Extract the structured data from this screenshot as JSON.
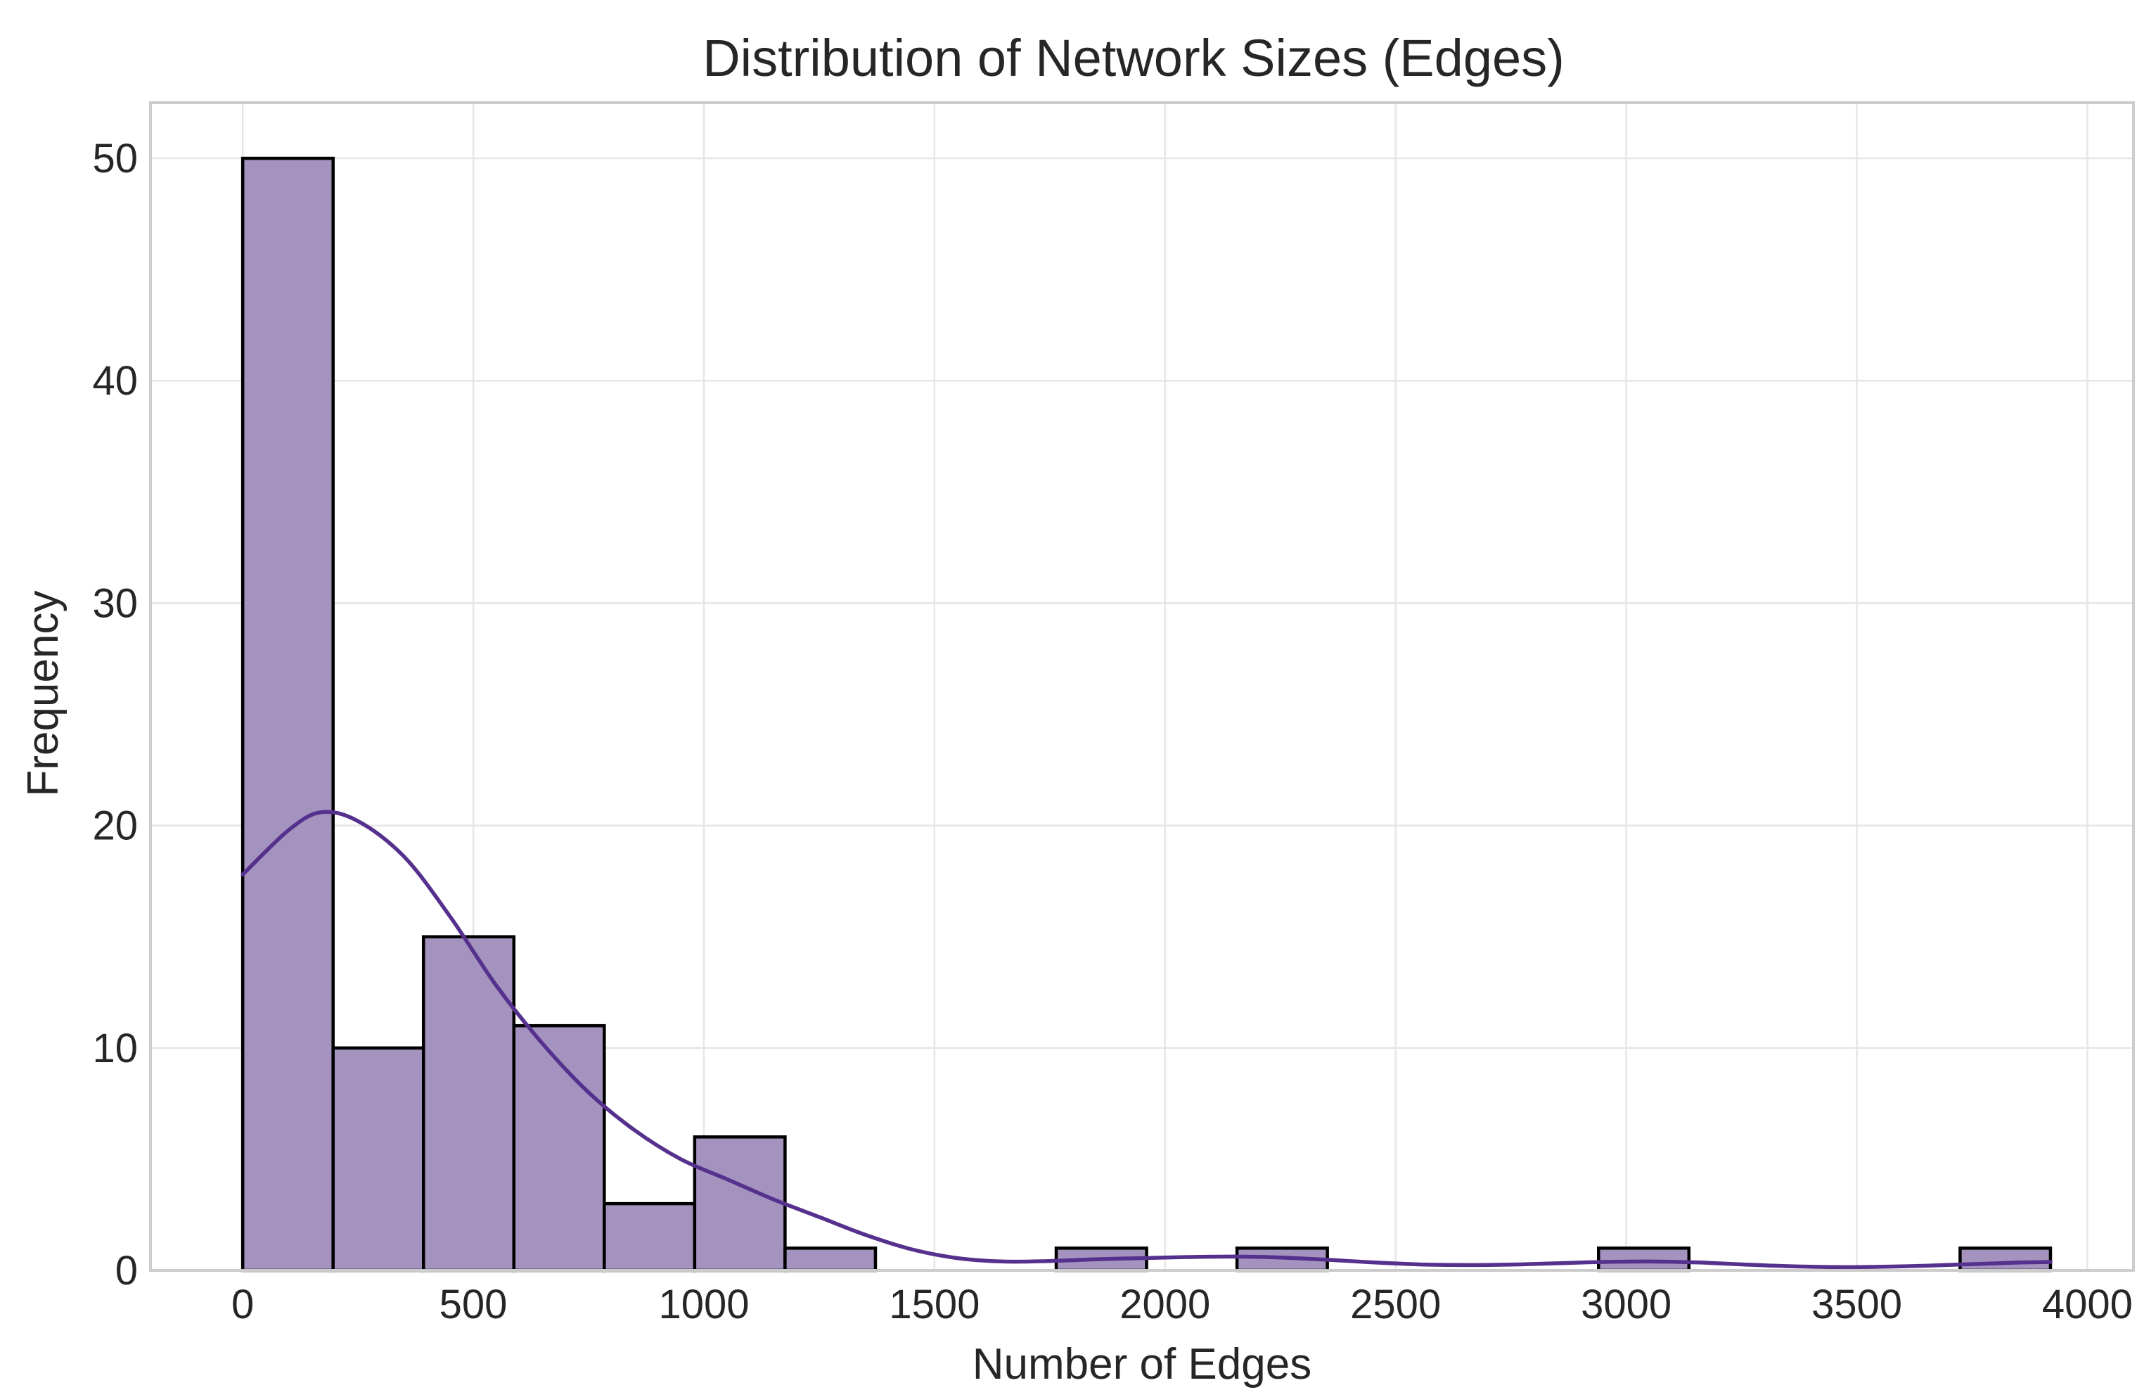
{
  "chart_data": {
    "type": "bar",
    "title": "Distribution of Network Sizes (Edges)",
    "xlabel": "Number of Edges",
    "ylabel": "Frequency",
    "xlim": [
      -200,
      4100
    ],
    "ylim": [
      0,
      52.5
    ],
    "xticks": [
      0,
      500,
      1000,
      1500,
      2000,
      2500,
      3000,
      3500,
      4000
    ],
    "xtick_labels": [
      "0",
      "500",
      "1000",
      "1500",
      "2000",
      "2500",
      "3000",
      "3500",
      "4000"
    ],
    "yticks": [
      0,
      10,
      20,
      30,
      40,
      50
    ],
    "ytick_labels": [
      "0",
      "10",
      "20",
      "30",
      "40",
      "50"
    ],
    "grid": true,
    "bin_edges": [
      0,
      196,
      392,
      588,
      784,
      980,
      1176,
      1372,
      1568,
      1764,
      1960,
      2156,
      2352,
      2548,
      2744,
      2940,
      3136,
      3332,
      3528,
      3724,
      3920
    ],
    "values": [
      50,
      10,
      15,
      11,
      3,
      6,
      1,
      0,
      0,
      1,
      0,
      1,
      0,
      0,
      0,
      1,
      0,
      0,
      0,
      1
    ],
    "kde": {
      "x": [
        0,
        100,
        170,
        250,
        350,
        450,
        550,
        650,
        750,
        850,
        950,
        1050,
        1150,
        1250,
        1350,
        1450,
        1550,
        1650,
        1750,
        1850,
        1950,
        2050,
        2150,
        2250,
        2350,
        2450,
        2550,
        2650,
        2750,
        2850,
        2950,
        3050,
        3150,
        3250,
        3350,
        3450,
        3550,
        3650,
        3750,
        3850,
        3920
      ],
      "y": [
        17.8,
        19.8,
        20.6,
        20.2,
        18.6,
        15.9,
        12.8,
        10.2,
        8.0,
        6.3,
        5.0,
        4.1,
        3.2,
        2.4,
        1.6,
        0.95,
        0.55,
        0.4,
        0.42,
        0.5,
        0.55,
        0.6,
        0.62,
        0.58,
        0.48,
        0.36,
        0.27,
        0.24,
        0.26,
        0.32,
        0.38,
        0.4,
        0.36,
        0.27,
        0.19,
        0.15,
        0.16,
        0.21,
        0.28,
        0.35,
        0.38
      ]
    },
    "colors": {
      "bar_fill": "#a493bf",
      "bar_edge": "#000000",
      "kde_line": "#55308d"
    }
  }
}
